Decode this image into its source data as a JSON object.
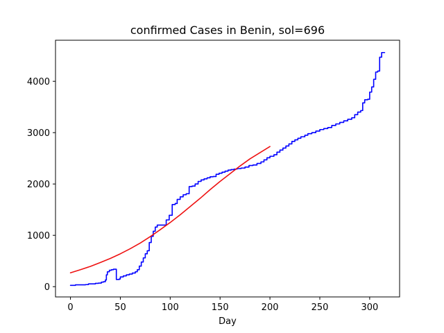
{
  "chart_data": {
    "type": "line",
    "title": "confirmed Cases in Benin, sol=696",
    "xlabel": "Day",
    "ylabel": "",
    "xlim": [
      -15,
      330
    ],
    "ylim": [
      -200,
      4800
    ],
    "xticks": [
      0,
      50,
      100,
      150,
      200,
      250,
      300
    ],
    "yticks": [
      0,
      1000,
      2000,
      3000,
      4000
    ],
    "grid": false,
    "series": [
      {
        "color": "#0000ff",
        "style": "step",
        "points": [
          [
            0,
            26
          ],
          [
            5,
            35
          ],
          [
            15,
            40
          ],
          [
            18,
            54
          ],
          [
            25,
            64
          ],
          [
            28,
            70
          ],
          [
            31,
            88
          ],
          [
            33,
            96
          ],
          [
            35,
            130
          ],
          [
            36,
            230
          ],
          [
            37,
            290
          ],
          [
            39,
            320
          ],
          [
            41,
            330
          ],
          [
            43,
            340
          ],
          [
            45,
            339
          ],
          [
            46,
            140
          ],
          [
            49,
            150
          ],
          [
            50,
            190
          ],
          [
            53,
            210
          ],
          [
            56,
            230
          ],
          [
            59,
            245
          ],
          [
            62,
            265
          ],
          [
            65,
            290
          ],
          [
            67,
            330
          ],
          [
            69,
            400
          ],
          [
            71,
            480
          ],
          [
            73,
            560
          ],
          [
            75,
            640
          ],
          [
            77,
            700
          ],
          [
            79,
            860
          ],
          [
            81,
            980
          ],
          [
            83,
            1080
          ],
          [
            85,
            1160
          ],
          [
            87,
            1200
          ],
          [
            90,
            1200
          ],
          [
            94,
            1200
          ],
          [
            96,
            1300
          ],
          [
            99,
            1390
          ],
          [
            102,
            1600
          ],
          [
            105,
            1620
          ],
          [
            107,
            1700
          ],
          [
            110,
            1750
          ],
          [
            113,
            1790
          ],
          [
            116,
            1810
          ],
          [
            119,
            1950
          ],
          [
            122,
            1960
          ],
          [
            125,
            2000
          ],
          [
            128,
            2050
          ],
          [
            131,
            2080
          ],
          [
            134,
            2100
          ],
          [
            137,
            2120
          ],
          [
            140,
            2140
          ],
          [
            143,
            2145
          ],
          [
            146,
            2190
          ],
          [
            149,
            2210
          ],
          [
            152,
            2230
          ],
          [
            155,
            2250
          ],
          [
            158,
            2270
          ],
          [
            161,
            2280
          ],
          [
            164,
            2290
          ],
          [
            167,
            2300
          ],
          [
            171,
            2310
          ],
          [
            175,
            2330
          ],
          [
            179,
            2360
          ],
          [
            183,
            2370
          ],
          [
            187,
            2400
          ],
          [
            191,
            2430
          ],
          [
            194,
            2470
          ],
          [
            197,
            2510
          ],
          [
            200,
            2540
          ],
          [
            204,
            2570
          ],
          [
            207,
            2620
          ],
          [
            210,
            2660
          ],
          [
            213,
            2700
          ],
          [
            216,
            2740
          ],
          [
            219,
            2780
          ],
          [
            222,
            2830
          ],
          [
            225,
            2860
          ],
          [
            228,
            2890
          ],
          [
            231,
            2920
          ],
          [
            235,
            2950
          ],
          [
            238,
            2980
          ],
          [
            242,
            3000
          ],
          [
            246,
            3030
          ],
          [
            250,
            3060
          ],
          [
            254,
            3080
          ],
          [
            258,
            3100
          ],
          [
            262,
            3140
          ],
          [
            266,
            3170
          ],
          [
            270,
            3200
          ],
          [
            274,
            3230
          ],
          [
            278,
            3260
          ],
          [
            282,
            3290
          ],
          [
            285,
            3350
          ],
          [
            288,
            3400
          ],
          [
            291,
            3430
          ],
          [
            293,
            3580
          ],
          [
            295,
            3640
          ],
          [
            298,
            3650
          ],
          [
            300,
            3790
          ],
          [
            302,
            3890
          ],
          [
            304,
            4040
          ],
          [
            306,
            4180
          ],
          [
            308,
            4200
          ],
          [
            310,
            4470
          ],
          [
            312,
            4560
          ],
          [
            315,
            4560
          ]
        ]
      },
      {
        "color": "#ee1111",
        "style": "smooth",
        "points": [
          [
            0,
            270
          ],
          [
            10,
            330
          ],
          [
            20,
            395
          ],
          [
            30,
            470
          ],
          [
            40,
            550
          ],
          [
            50,
            640
          ],
          [
            60,
            740
          ],
          [
            70,
            850
          ],
          [
            80,
            975
          ],
          [
            90,
            1110
          ],
          [
            100,
            1250
          ],
          [
            110,
            1400
          ],
          [
            120,
            1560
          ],
          [
            130,
            1720
          ],
          [
            140,
            1890
          ],
          [
            150,
            2050
          ],
          [
            160,
            2200
          ],
          [
            170,
            2350
          ],
          [
            180,
            2490
          ],
          [
            190,
            2610
          ],
          [
            200,
            2730
          ]
        ]
      }
    ]
  }
}
